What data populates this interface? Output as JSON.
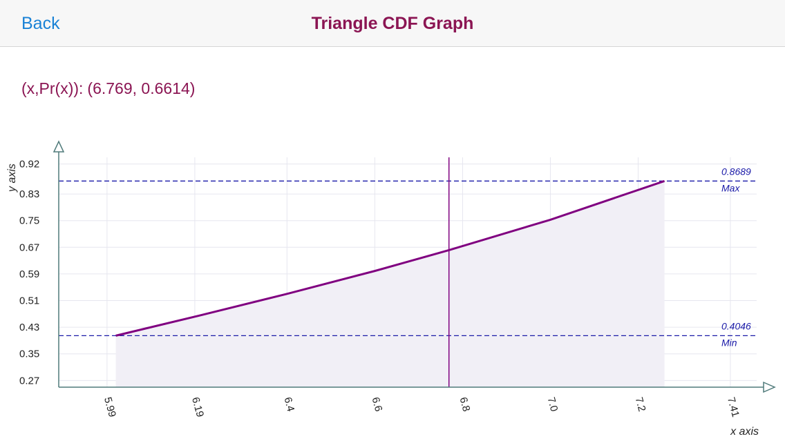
{
  "navbar": {
    "back_label": "Back",
    "title": "Triangle CDF Graph"
  },
  "readout": {
    "label": "(x,Pr(x)):",
    "value": "(6.769, 0.6614)"
  },
  "chart_data": {
    "type": "line",
    "xlabel": "x axis",
    "ylabel": "y axis",
    "x_ticks": [
      "5.99",
      "6.19",
      "6.4",
      "6.6",
      "6.8",
      "7.0",
      "7.2",
      "7.41"
    ],
    "y_ticks": [
      "0.92",
      "0.83",
      "0.75",
      "0.67",
      "0.59",
      "0.51",
      "0.43",
      "0.35",
      "0.27"
    ],
    "xlim": [
      5.88,
      7.47
    ],
    "ylim": [
      0.25,
      0.94
    ],
    "series": [
      {
        "values": [
          {
            "x": 6.01,
            "y": 0.4046
          },
          {
            "x": 6.2,
            "y": 0.4648
          },
          {
            "x": 6.4,
            "y": 0.5301
          },
          {
            "x": 6.6,
            "y": 0.5989
          },
          {
            "x": 6.769,
            "y": 0.6614
          },
          {
            "x": 7.0,
            "y": 0.7527
          },
          {
            "x": 7.26,
            "y": 0.8689
          }
        ]
      }
    ],
    "reference_lines": [
      {
        "value": "0.8689",
        "label": "Max",
        "y": 0.8689
      },
      {
        "value": "0.4046",
        "label": "Min",
        "y": 0.4046
      }
    ],
    "cursor_x": 6.769,
    "grid": true,
    "colors": {
      "line": "#800080",
      "fill": "#f1eff6",
      "reference": "#1a1aa8",
      "axis": "#4f7a7a",
      "grid": "#e6e6ef"
    }
  }
}
